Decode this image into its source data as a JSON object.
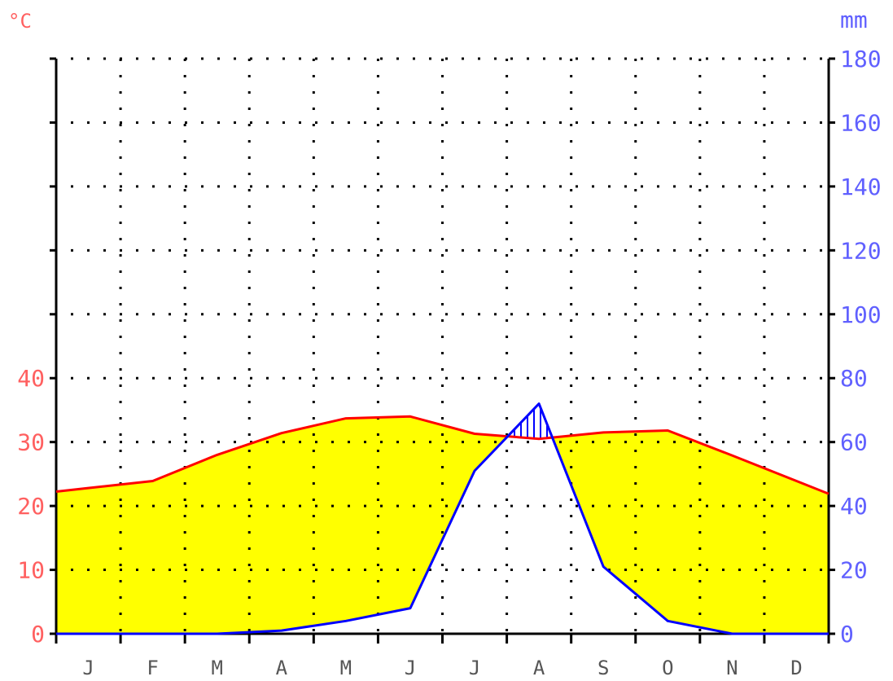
{
  "chart_data": {
    "type": "climate-diagram",
    "temperature_unit_label": "°C",
    "precipitation_unit_label": "mm",
    "months": [
      "J",
      "F",
      "M",
      "A",
      "M",
      "J",
      "J",
      "A",
      "S",
      "O",
      "N",
      "D"
    ],
    "temperature_ticks": [
      "0",
      "10",
      "20",
      "30",
      "40"
    ],
    "precipitation_ticks": [
      "0",
      "20",
      "40",
      "60",
      "80",
      "100",
      "120",
      "140",
      "160",
      "180"
    ],
    "temperature_range": [
      0,
      40
    ],
    "precipitation_range": [
      0,
      180
    ],
    "precipitation_scale_factor": 2,
    "grid": true,
    "series": [
      {
        "kind": "temperature",
        "values": [
          22.8,
          23.9,
          28.0,
          31.4,
          33.7,
          34.0,
          31.3,
          30.5,
          31.5,
          31.8,
          27.9,
          23.9
        ]
      },
      {
        "kind": "precipitation",
        "values": [
          0,
          0,
          0,
          1,
          4,
          8,
          51,
          72,
          21,
          4,
          0,
          0
        ]
      }
    ],
    "colors": {
      "temperature": "#ff0000",
      "precipitation": "#0000ff",
      "arid_fill": "#ffff00",
      "temperature_text": "#ff6060",
      "precipitation_text": "#6060ff"
    }
  }
}
